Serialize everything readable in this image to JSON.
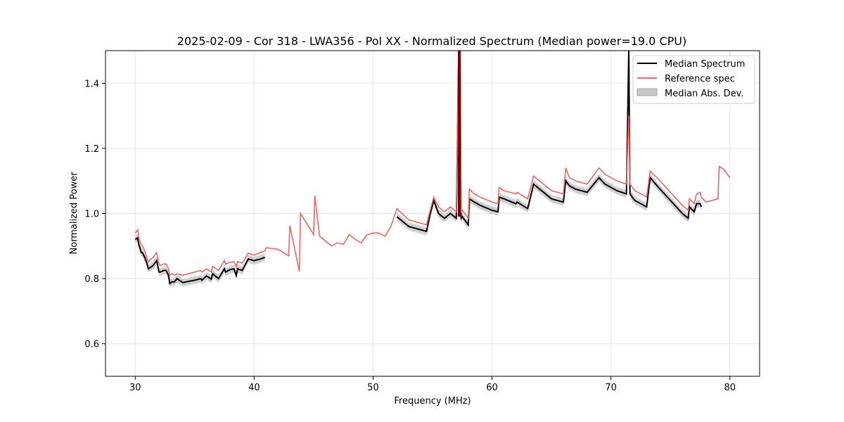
{
  "chart_data": {
    "type": "line",
    "title": "2025-02-09 - Cor 318 - LWA356 - Pol XX - Normalized Spectrum (Median power=19.0 CPU)",
    "xlabel": "Frequency (MHz)",
    "ylabel": "Normalized Power",
    "xlim": [
      27.5,
      82.5
    ],
    "ylim": [
      0.5,
      1.5
    ],
    "xticks": [
      30,
      40,
      50,
      60,
      70,
      80
    ],
    "yticks": [
      0.6,
      0.8,
      1.0,
      1.2,
      1.4
    ],
    "xtick_labels": [
      "30",
      "40",
      "50",
      "60",
      "70",
      "80"
    ],
    "ytick_labels": [
      "0.6",
      "0.8",
      "1.0",
      "1.2",
      "1.4"
    ],
    "grid": true,
    "legend": {
      "placement": "top-right",
      "entries": [
        "Median Spectrum",
        "Reference spec",
        "Median Abs. Dev."
      ]
    },
    "colors": {
      "median": "#000000",
      "reference": "#f06464",
      "mad": "#c8c8c8",
      "spike": "#800000"
    },
    "series": [
      {
        "name": "Median Spectrum",
        "x": [
          30.0,
          30.2,
          30.3,
          30.4,
          30.5,
          30.6,
          30.8,
          31.0,
          31.1,
          31.3,
          31.5,
          31.6,
          31.8,
          32.0,
          32.1,
          32.4,
          32.6,
          32.8,
          32.9,
          33.1,
          33.3,
          33.5,
          34.0,
          35.0,
          35.5,
          35.6,
          36.0,
          36.4,
          36.5,
          37.0,
          37.5,
          37.6,
          38.0,
          38.3,
          38.5,
          38.6,
          39.0,
          39.5,
          40.0,
          40.5,
          40.9,
          null,
          52.0,
          53.0,
          54.0,
          54.5,
          54.8,
          55.1,
          55.5,
          56.0,
          56.5,
          57.0,
          57.2,
          57.3,
          57.4,
          57.5,
          58.0,
          58.1,
          58.5,
          59.0,
          60.0,
          60.5,
          60.6,
          61.0,
          62.0,
          62.1,
          63.0,
          63.5,
          64.0,
          65.0,
          66.0,
          66.2,
          66.5,
          67.0,
          68.0,
          69.0,
          69.5,
          70.5,
          71.3,
          71.5,
          71.6,
          72.0,
          73.0,
          73.3,
          74.0,
          75.0,
          76.0,
          76.5,
          76.6,
          77.0,
          77.2,
          77.5,
          77.6
        ],
        "values": [
          0.92,
          0.925,
          0.905,
          0.895,
          0.88,
          0.88,
          0.865,
          0.845,
          0.83,
          0.835,
          0.84,
          0.845,
          0.855,
          0.82,
          0.82,
          0.825,
          0.825,
          0.81,
          0.785,
          0.79,
          0.79,
          0.8,
          0.788,
          0.795,
          0.8,
          0.795,
          0.808,
          0.798,
          0.815,
          0.8,
          0.83,
          0.82,
          0.828,
          0.83,
          0.81,
          0.83,
          0.825,
          0.86,
          0.855,
          0.86,
          0.865,
          null,
          0.99,
          0.96,
          0.95,
          0.945,
          0.998,
          1.04,
          1.0,
          0.985,
          1.0,
          0.985,
          1.5,
          1.5,
          0.985,
          0.99,
          0.965,
          1.045,
          1.035,
          1.025,
          1.01,
          1.005,
          1.05,
          1.045,
          1.03,
          1.035,
          1.015,
          1.09,
          1.075,
          1.045,
          1.035,
          1.1,
          1.085,
          1.075,
          1.065,
          1.11,
          1.09,
          1.07,
          1.06,
          1.5,
          1.06,
          1.04,
          1.02,
          1.11,
          1.08,
          1.04,
          1.0,
          0.985,
          1.02,
          1.005,
          1.03,
          1.03,
          1.02
        ]
      },
      {
        "name": "Reference spec",
        "x": [
          30.0,
          30.2,
          30.3,
          30.4,
          30.5,
          30.6,
          30.8,
          31.0,
          31.1,
          31.3,
          31.5,
          31.6,
          31.8,
          32.0,
          32.1,
          32.4,
          32.6,
          32.8,
          32.9,
          33.1,
          33.3,
          33.5,
          34.0,
          35.0,
          35.5,
          35.6,
          36.0,
          36.4,
          36.5,
          37.0,
          37.5,
          37.6,
          38.0,
          38.3,
          38.5,
          38.6,
          39.0,
          39.5,
          40.0,
          40.5,
          40.9,
          41.0,
          42.0,
          42.9,
          43.0,
          43.8,
          43.9,
          45.0,
          45.1,
          45.5,
          46.0,
          46.5,
          47.0,
          47.5,
          48.0,
          48.5,
          49.0,
          49.5,
          50.0,
          50.5,
          51.0,
          51.5,
          52.0,
          53.0,
          54.0,
          54.5,
          54.8,
          55.1,
          55.5,
          56.0,
          56.5,
          57.0,
          57.2,
          57.3,
          57.4,
          57.5,
          58.0,
          58.1,
          58.5,
          59.0,
          60.0,
          60.5,
          60.6,
          61.0,
          62.0,
          62.1,
          63.0,
          63.5,
          64.0,
          65.0,
          66.0,
          66.2,
          66.5,
          67.0,
          68.0,
          69.0,
          69.5,
          70.5,
          71.3,
          71.5,
          71.6,
          72.0,
          73.0,
          73.3,
          74.0,
          75.0,
          76.0,
          76.5,
          76.6,
          77.0,
          77.2,
          77.5,
          77.6,
          78.0,
          79.0,
          79.1,
          79.5,
          80.0
        ],
        "values": [
          0.94,
          0.95,
          0.925,
          0.915,
          0.905,
          0.9,
          0.885,
          0.86,
          0.85,
          0.86,
          0.865,
          0.87,
          0.88,
          0.845,
          0.84,
          0.845,
          0.845,
          0.83,
          0.81,
          0.815,
          0.81,
          0.815,
          0.81,
          0.82,
          0.825,
          0.82,
          0.83,
          0.82,
          0.838,
          0.825,
          0.855,
          0.845,
          0.85,
          0.852,
          0.835,
          0.852,
          0.848,
          0.878,
          0.872,
          0.88,
          0.885,
          0.895,
          0.89,
          0.87,
          0.962,
          0.822,
          1.0,
          0.935,
          1.055,
          0.93,
          0.915,
          0.9,
          0.91,
          0.905,
          0.935,
          0.92,
          0.91,
          0.935,
          0.94,
          0.94,
          0.93,
          0.96,
          1.015,
          0.98,
          0.97,
          0.965,
          1.01,
          1.05,
          1.02,
          1.005,
          1.02,
          1.005,
          1.5,
          1.5,
          1.005,
          1.01,
          0.985,
          1.075,
          1.06,
          1.05,
          1.035,
          1.03,
          1.08,
          1.07,
          1.06,
          1.065,
          1.045,
          1.115,
          1.1,
          1.07,
          1.06,
          1.14,
          1.11,
          1.1,
          1.09,
          1.14,
          1.12,
          1.1,
          1.09,
          1.3,
          1.09,
          1.07,
          1.05,
          1.13,
          1.105,
          1.065,
          1.025,
          1.01,
          1.045,
          1.03,
          1.06,
          1.065,
          1.05,
          1.035,
          1.045,
          1.145,
          1.135,
          1.11
        ]
      }
    ],
    "mad_band_halfwidth": 0.012
  }
}
